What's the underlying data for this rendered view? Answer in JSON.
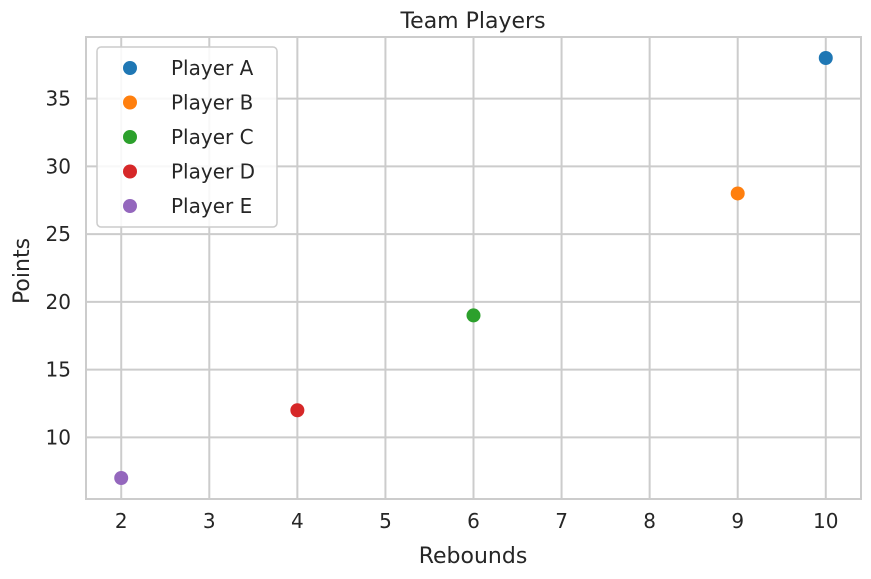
{
  "chart_data": {
    "type": "scatter",
    "title": "Team Players",
    "xlabel": "Rebounds",
    "ylabel": "Points",
    "xlim": [
      1.6,
      10.4
    ],
    "ylim": [
      5.45,
      39.55
    ],
    "xticks": [
      2,
      3,
      4,
      5,
      6,
      7,
      8,
      9,
      10
    ],
    "yticks": [
      10,
      15,
      20,
      25,
      30,
      35
    ],
    "grid": true,
    "legend_position": "top-left",
    "series": [
      {
        "name": "Player A",
        "color": "#1f77b4",
        "points": [
          {
            "x": 10,
            "y": 38
          }
        ]
      },
      {
        "name": "Player B",
        "color": "#ff7f0e",
        "points": [
          {
            "x": 9,
            "y": 28
          }
        ]
      },
      {
        "name": "Player C",
        "color": "#2ca02c",
        "points": [
          {
            "x": 6,
            "y": 19
          }
        ]
      },
      {
        "name": "Player D",
        "color": "#d62728",
        "points": [
          {
            "x": 4,
            "y": 12
          }
        ]
      },
      {
        "name": "Player E",
        "color": "#9467bd",
        "points": [
          {
            "x": 2,
            "y": 7
          }
        ]
      }
    ]
  }
}
